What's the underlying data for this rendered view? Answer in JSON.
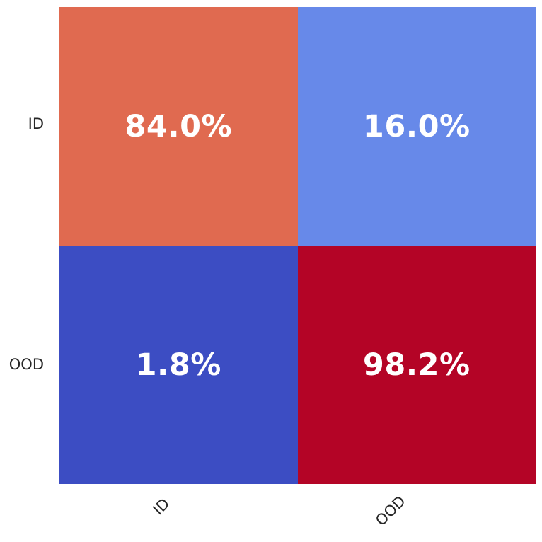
{
  "chart_data": {
    "type": "heatmap",
    "title": "",
    "xlabel": "",
    "ylabel": "",
    "row_labels": [
      "ID",
      "OOD"
    ],
    "col_labels": [
      "ID",
      "OOD"
    ],
    "values": [
      [
        84.0,
        16.0
      ],
      [
        1.8,
        98.2
      ]
    ],
    "cell_text": {
      "r0c0": "84.0%",
      "r0c1": "16.0%",
      "r1c0": "1.8%",
      "r1c1": "98.2%"
    },
    "cell_colors": {
      "r0c0": "#E06A50",
      "r0c1": "#6789E9",
      "r1c0": "#3C4DC3",
      "r1c1": "#B40426"
    },
    "annotation_text_color": "#FFFFFF",
    "tick_label_color": "#262626",
    "colormap": "coolwarm",
    "x_tick_rotation_deg": 45,
    "grid": false,
    "legend": "none",
    "value_range": [
      0,
      100
    ]
  },
  "ticks": {
    "y0": "ID",
    "y1": "OOD",
    "x0": "ID",
    "x1": "OOD"
  }
}
